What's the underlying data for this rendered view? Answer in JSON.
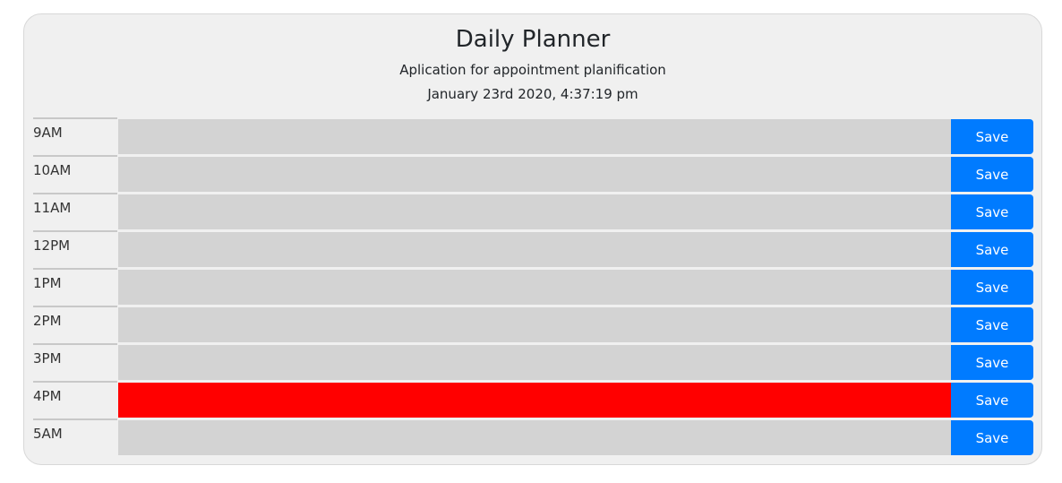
{
  "header": {
    "title": "Daily Planner",
    "subtitle": "Aplication for appointment planification",
    "datetime": "January 23rd 2020, 4:37:19 pm"
  },
  "colors": {
    "past_slot": "#d3d3d3",
    "present_slot": "#ff0000",
    "save_button": "#007bff",
    "card_background": "#f0f0f0"
  },
  "rows": [
    {
      "hour": "9AM",
      "text": "",
      "state": "past",
      "save_label": "Save"
    },
    {
      "hour": "10AM",
      "text": "",
      "state": "past",
      "save_label": "Save"
    },
    {
      "hour": "11AM",
      "text": "",
      "state": "past",
      "save_label": "Save"
    },
    {
      "hour": "12PM",
      "text": "",
      "state": "past",
      "save_label": "Save"
    },
    {
      "hour": "1PM",
      "text": "",
      "state": "past",
      "save_label": "Save"
    },
    {
      "hour": "2PM",
      "text": "",
      "state": "past",
      "save_label": "Save"
    },
    {
      "hour": "3PM",
      "text": "",
      "state": "past",
      "save_label": "Save"
    },
    {
      "hour": "4PM",
      "text": "",
      "state": "present",
      "save_label": "Save"
    },
    {
      "hour": "5AM",
      "text": "",
      "state": "past",
      "save_label": "Save"
    }
  ]
}
